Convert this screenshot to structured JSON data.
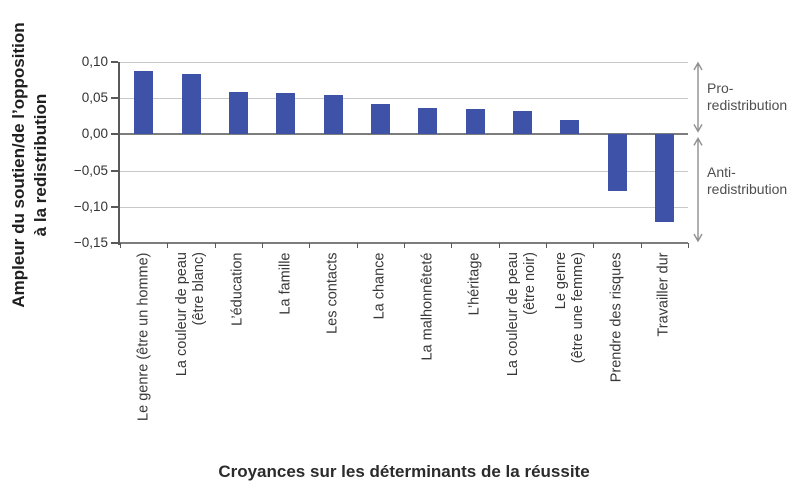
{
  "chart_data": {
    "type": "bar",
    "title": "",
    "xlabel": "Croyances sur les déterminants de la réussite",
    "ylabel": "Ampleur du soutien/de l’opposition à la redistribution",
    "ylabel_lines": [
      "Ampleur du soutien/de l’opposition",
      "à la redistribution"
    ],
    "ylim": [
      -0.15,
      0.1
    ],
    "grid": true,
    "legend": null,
    "yticks": [
      {
        "value": 0.1,
        "label": "0,10"
      },
      {
        "value": 0.05,
        "label": "0,05"
      },
      {
        "value": 0.0,
        "label": "0,00"
      },
      {
        "value": -0.05,
        "label": "−0,05"
      },
      {
        "value": -0.1,
        "label": "−0,10"
      },
      {
        "value": -0.15,
        "label": "−0,15"
      }
    ],
    "categories": [
      "Le genre (être un homme)",
      "La couleur de peau (être blanc)",
      "L’éducation",
      "La famille",
      "Les contacts",
      "La chance",
      "La malhonnêteté",
      "L’héritage",
      "La couleur de peau (être noir)",
      "Le genre (être une femme)",
      "Prendre des risques",
      "Travailler dur"
    ],
    "category_label_lines": [
      [
        "Le genre (être un homme)"
      ],
      [
        "La couleur de peau",
        "(être blanc)"
      ],
      [
        "L’éducation"
      ],
      [
        "La famille"
      ],
      [
        "Les contacts"
      ],
      [
        "La chance"
      ],
      [
        "La malhonnêteté"
      ],
      [
        "L’héritage"
      ],
      [
        "La couleur de peau",
        "(être noir)"
      ],
      [
        "Le genre",
        "(être une femme)"
      ],
      [
        "Prendre des risques"
      ],
      [
        "Travailler dur"
      ]
    ],
    "values": [
      0.088,
      0.084,
      0.058,
      0.057,
      0.054,
      0.042,
      0.036,
      0.035,
      0.033,
      0.02,
      -0.078,
      -0.121
    ],
    "bar_color": "#3E53A8",
    "annotations": [
      {
        "label_lines": [
          "Pro-",
          "redistribution"
        ],
        "value_range": [
          0,
          0.1
        ]
      },
      {
        "label_lines": [
          "Anti-",
          "redistribution"
        ],
        "value_range": [
          -0.15,
          0
        ]
      }
    ],
    "colors": {
      "bar": "#3E53A8",
      "gridline": "#c9c9c9",
      "zero_line": "#7d7d7d",
      "axis": "#595959",
      "tick_label": "#333333",
      "category_label": "#383838",
      "annotation_text": "#4f4f4f",
      "arrow": "#8f8f8f"
    }
  }
}
